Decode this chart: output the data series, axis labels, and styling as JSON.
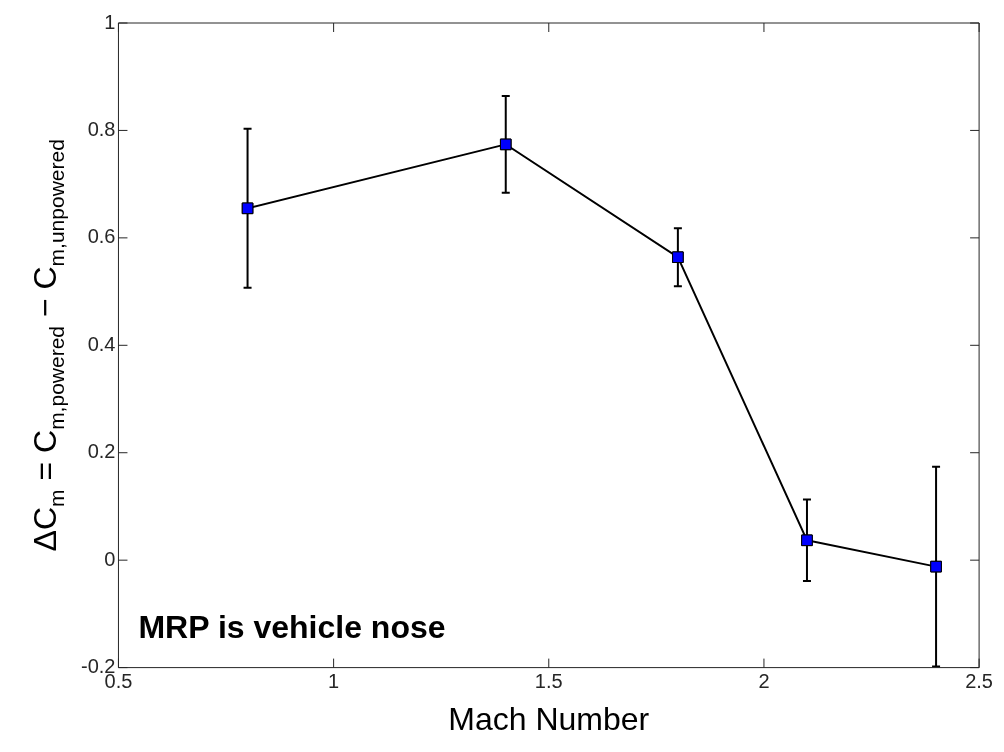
{
  "chart_data": {
    "type": "line",
    "xlabel": "Mach Number",
    "ylabel": "ΔC$_{m}$ = C$_{m,powered}$ − C$_{m,unpowered}$",
    "x": [
      0.8,
      1.4,
      1.8,
      2.1,
      2.4
    ],
    "series": [
      {
        "color": "#0000ff",
        "values": [
          0.655,
          0.774,
          0.564,
          0.037,
          -0.012
        ],
        "errors": [
          0.148,
          0.09,
          0.054,
          0.076,
          0.186
        ]
      }
    ],
    "xlim": [
      0.5,
      2.5
    ],
    "xticks": [
      0.5,
      1,
      1.5,
      2,
      2.5
    ],
    "ylim": [
      -0.2,
      1
    ],
    "yticks": [
      -0.2,
      0,
      0.2,
      0.4,
      0.6,
      0.8,
      1
    ],
    "marker": "square",
    "line_style": "solid",
    "grid": false,
    "legend": false,
    "annotations": [
      "MRP is vehicle nose"
    ]
  }
}
